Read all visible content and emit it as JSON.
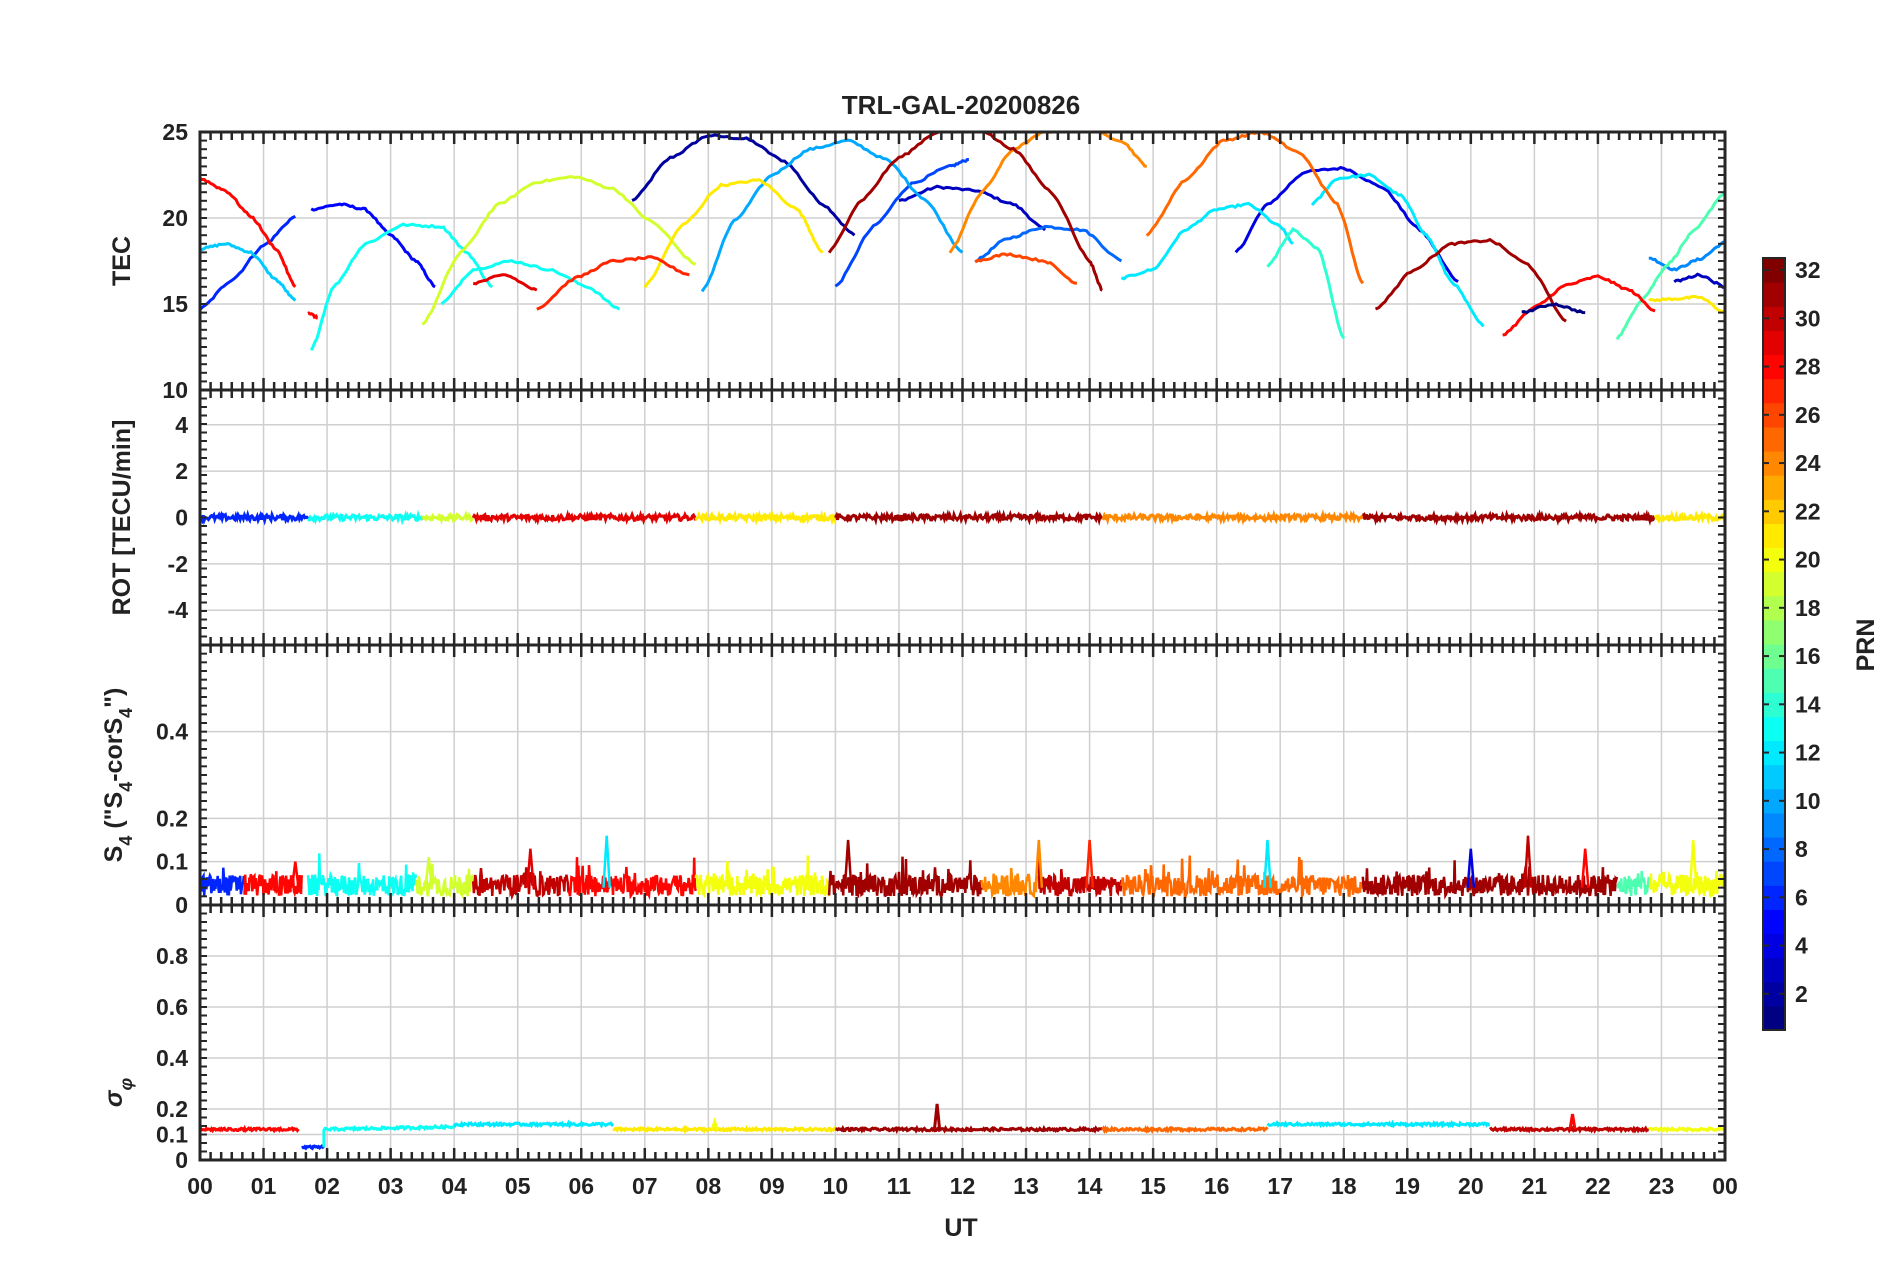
{
  "chart_data": [
    {
      "type": "line",
      "panel": "tec",
      "title": "TRL-GAL-20200826",
      "ylabel": "TEC",
      "xlabel": "",
      "xlim": [
        0,
        24
      ],
      "ylim": [
        10,
        25
      ],
      "yticks": [
        10,
        15,
        20,
        25
      ],
      "grid": true,
      "series": [
        {
          "prn": 2,
          "x": [
            6.8,
            7.4,
            8.0,
            8.6,
            9.2,
            9.8,
            10.3
          ],
          "y": [
            21.0,
            23.5,
            24.8,
            24.6,
            23.3,
            20.8,
            19.0
          ]
        },
        {
          "prn": 3,
          "x": [
            11.0,
            11.6,
            12.2,
            12.8,
            13.3
          ],
          "y": [
            21.0,
            21.8,
            21.6,
            20.8,
            19.3
          ]
        },
        {
          "prn": 4,
          "x": [
            16.3,
            16.8,
            17.4,
            18.0,
            18.6,
            19.2,
            19.8
          ],
          "y": [
            18.0,
            20.8,
            22.7,
            22.9,
            21.8,
            19.3,
            16.3
          ]
        },
        {
          "prn": 5,
          "x": [
            1.75,
            2.2,
            2.6,
            3.0,
            3.4,
            3.7
          ],
          "y": [
            20.5,
            20.8,
            20.5,
            19.0,
            17.5,
            16.0
          ]
        },
        {
          "prn": 6,
          "x": [
            0.0,
            0.5,
            1.0,
            1.5
          ],
          "y": [
            14.7,
            16.4,
            18.4,
            20.1
          ]
        },
        {
          "prn": 7,
          "x": [
            10.0,
            10.6,
            11.2,
            11.8,
            12.1
          ],
          "y": [
            16.0,
            19.5,
            22.0,
            23.0,
            23.4
          ]
        },
        {
          "prn": 8,
          "x": [
            12.2,
            12.7,
            13.3,
            13.9,
            14.5
          ],
          "y": [
            17.5,
            18.8,
            19.5,
            19.3,
            17.5
          ]
        },
        {
          "prn": 9,
          "x": [
            22.8,
            23.2,
            23.6,
            24.0
          ],
          "y": [
            17.7,
            17.0,
            17.6,
            18.6
          ]
        },
        {
          "prn": 10,
          "x": [
            7.9,
            8.4,
            9.0,
            9.6,
            10.2,
            10.8,
            11.4,
            12.0
          ],
          "y": [
            15.7,
            19.8,
            22.5,
            24.0,
            24.5,
            23.4,
            21.1,
            18.0
          ]
        },
        {
          "prn": 11,
          "x": [
            0.0,
            0.4,
            0.8,
            1.2,
            1.5
          ],
          "y": [
            18.2,
            18.5,
            18.0,
            16.4,
            15.2
          ]
        },
        {
          "prn": 12,
          "x": [
            14.5,
            15.0,
            15.5,
            16.0,
            16.5,
            17.0,
            17.2
          ],
          "y": [
            16.5,
            17.0,
            19.3,
            20.5,
            20.8,
            19.5,
            18.5
          ]
        },
        {
          "prn": 12,
          "x": [
            17.5,
            17.9,
            18.4,
            18.9,
            19.3,
            19.7,
            20.2
          ],
          "y": [
            20.8,
            22.3,
            22.5,
            21.3,
            19.0,
            16.3,
            13.7
          ]
        },
        {
          "prn": 13,
          "x": [
            1.75,
            2.1,
            2.6,
            3.2,
            3.8,
            4.2,
            4.6
          ],
          "y": [
            12.3,
            16.0,
            18.5,
            19.6,
            19.5,
            18.0,
            16.0
          ]
        },
        {
          "prn": 13,
          "x": [
            3.8,
            4.3,
            4.9,
            5.5,
            6.1,
            6.6
          ],
          "y": [
            15.0,
            17.0,
            17.5,
            17.0,
            16.0,
            14.7
          ]
        },
        {
          "prn": 14,
          "x": [
            16.8,
            17.2,
            17.6,
            18.0
          ],
          "y": [
            17.2,
            19.3,
            18.2,
            13.0
          ]
        },
        {
          "prn": 15,
          "x": [
            22.3,
            22.7,
            23.1,
            23.5,
            24.0
          ],
          "y": [
            13.0,
            15.3,
            17.3,
            19.2,
            21.5
          ]
        },
        {
          "prn": 19,
          "x": [
            3.5,
            4.1,
            4.7,
            5.3,
            5.9,
            6.5,
            7.1,
            7.8
          ],
          "y": [
            13.8,
            18.0,
            20.8,
            22.1,
            22.4,
            21.7,
            19.8,
            17.3
          ]
        },
        {
          "prn": 21,
          "x": [
            7.0,
            7.6,
            8.2,
            8.8,
            9.4,
            9.8
          ],
          "y": [
            16.0,
            19.6,
            21.9,
            22.2,
            20.5,
            18.0
          ]
        },
        {
          "prn": 21,
          "x": [
            22.8,
            23.2,
            23.6,
            24.0
          ],
          "y": [
            15.2,
            15.3,
            15.4,
            14.5
          ]
        },
        {
          "prn": 24,
          "x": [
            11.8,
            12.3,
            12.8,
            13.3,
            13.9,
            14.5,
            14.9
          ],
          "y": [
            18.0,
            21.5,
            24.0,
            25.0,
            25.3,
            24.5,
            23.0
          ]
        },
        {
          "prn": 25,
          "x": [
            14.9,
            15.5,
            16.1,
            16.7,
            17.3,
            17.9,
            18.3
          ],
          "y": [
            19.0,
            22.2,
            24.5,
            25.0,
            23.8,
            20.8,
            16.2
          ]
        },
        {
          "prn": 26,
          "x": [
            12.2,
            12.7,
            13.3,
            13.8
          ],
          "y": [
            17.5,
            17.9,
            17.5,
            16.2
          ]
        },
        {
          "prn": 27,
          "x": [
            5.3,
            5.9,
            6.5,
            7.1,
            7.7
          ],
          "y": [
            14.7,
            16.5,
            17.5,
            17.7,
            16.7
          ]
        },
        {
          "prn": 28,
          "x": [
            0.0,
            0.4,
            0.8,
            1.2,
            1.5
          ],
          "y": [
            22.3,
            21.6,
            20.1,
            18.2,
            16.0
          ]
        },
        {
          "prn": 28,
          "x": [
            20.5,
            21.0,
            21.5,
            22.0,
            22.5,
            22.9
          ],
          "y": [
            13.2,
            14.8,
            16.1,
            16.6,
            15.8,
            14.6
          ]
        },
        {
          "prn": 28,
          "x": [
            1.7,
            1.85
          ],
          "y": [
            14.5,
            14.2
          ]
        },
        {
          "prn": 29,
          "x": [
            4.3,
            4.8,
            5.3
          ],
          "y": [
            16.2,
            16.7,
            15.8
          ]
        },
        {
          "prn": 31,
          "x": [
            9.9,
            10.4,
            11.0,
            11.6,
            12.2,
            12.8,
            13.4,
            14.0,
            14.2
          ],
          "y": [
            18.0,
            21.0,
            23.5,
            25.0,
            25.3,
            24.0,
            21.5,
            17.5,
            15.8
          ]
        },
        {
          "prn": 31,
          "x": [
            18.5,
            19.1,
            19.7,
            20.3,
            20.9,
            21.5
          ],
          "y": [
            14.7,
            17.0,
            18.5,
            18.7,
            17.3,
            14.0
          ]
        },
        {
          "prn": 1,
          "x": [
            20.8,
            21.3,
            21.8
          ],
          "y": [
            14.5,
            15.0,
            14.5
          ]
        },
        {
          "prn": 3,
          "x": [
            23.2,
            23.6,
            24.0
          ],
          "y": [
            16.3,
            16.7,
            16.0
          ]
        }
      ]
    },
    {
      "type": "line",
      "panel": "rot",
      "ylabel": "ROT [TECU/min]",
      "xlim": [
        0,
        24
      ],
      "ylim": [
        -5.5,
        5.5
      ],
      "yticks": [
        -4,
        -2,
        0,
        2,
        4
      ],
      "grid": true,
      "note": "All PRNs near 0 TECU/min, |ROT| < 0.3",
      "segments": [
        {
          "prn": 6,
          "x0": 0,
          "x1": 1.7
        },
        {
          "prn": 13,
          "x0": 1.7,
          "x1": 3.5
        },
        {
          "prn": 19,
          "x0": 3.5,
          "x1": 4.3
        },
        {
          "prn": 29,
          "x0": 4.3,
          "x1": 7.8
        },
        {
          "prn": 21,
          "x0": 7.8,
          "x1": 10.0
        },
        {
          "prn": 31,
          "x0": 10.0,
          "x1": 14.2
        },
        {
          "prn": 24,
          "x0": 14.2,
          "x1": 18.3
        },
        {
          "prn": 31,
          "x0": 18.3,
          "x1": 22.9
        },
        {
          "prn": 21,
          "x0": 22.9,
          "x1": 24.0
        }
      ]
    },
    {
      "type": "line",
      "panel": "s4",
      "ylabel": "S4 (\"S4-corS4\")",
      "ylabel_parts": [
        "S",
        "4",
        " (\"S",
        "4",
        "-corS",
        "4",
        "\")"
      ],
      "xlim": [
        0,
        24
      ],
      "ylim": [
        0,
        0.6
      ],
      "yticks": [
        0,
        0.1,
        0.2,
        0.4
      ],
      "ytick_labels": [
        "0",
        "0.1",
        "0.2",
        "0.4"
      ],
      "grid": true,
      "baseline": 0.04,
      "spread": 0.05,
      "peaks": [
        {
          "x": 1.5,
          "y": 0.1,
          "prn": 28
        },
        {
          "x": 3.6,
          "y": 0.11,
          "prn": 19
        },
        {
          "x": 5.2,
          "y": 0.13,
          "prn": 29
        },
        {
          "x": 6.4,
          "y": 0.16,
          "prn": 12
        },
        {
          "x": 10.2,
          "y": 0.15,
          "prn": 31
        },
        {
          "x": 13.2,
          "y": 0.15,
          "prn": 24
        },
        {
          "x": 14.0,
          "y": 0.15,
          "prn": 27
        },
        {
          "x": 16.8,
          "y": 0.15,
          "prn": 12
        },
        {
          "x": 20.0,
          "y": 0.13,
          "prn": 4
        },
        {
          "x": 20.9,
          "y": 0.16,
          "prn": 30
        },
        {
          "x": 21.8,
          "y": 0.13,
          "prn": 28
        },
        {
          "x": 23.5,
          "y": 0.15,
          "prn": 20
        }
      ],
      "segments": [
        {
          "prn": 6,
          "x0": 0,
          "x1": 0.7
        },
        {
          "prn": 28,
          "x0": 0.7,
          "x1": 1.6
        },
        {
          "prn": 13,
          "x0": 1.7,
          "x1": 3.4
        },
        {
          "prn": 19,
          "x0": 3.4,
          "x1": 4.3
        },
        {
          "prn": 30,
          "x0": 4.3,
          "x1": 5.8
        },
        {
          "prn": 28,
          "x0": 5.8,
          "x1": 7.8
        },
        {
          "prn": 20,
          "x0": 7.8,
          "x1": 9.9
        },
        {
          "prn": 31,
          "x0": 9.9,
          "x1": 12.3
        },
        {
          "prn": 24,
          "x0": 12.3,
          "x1": 13.2
        },
        {
          "prn": 30,
          "x0": 13.2,
          "x1": 14.5
        },
        {
          "prn": 25,
          "x0": 14.5,
          "x1": 18.3
        },
        {
          "prn": 31,
          "x0": 18.3,
          "x1": 22.3
        },
        {
          "prn": 15,
          "x0": 22.3,
          "x1": 22.8
        },
        {
          "prn": 20,
          "x0": 22.8,
          "x1": 24.0
        }
      ]
    },
    {
      "type": "line",
      "panel": "sigma-phi",
      "ylabel": "σφ",
      "ylabel_parts": [
        "σ",
        "φ"
      ],
      "xlabel": "UT",
      "xlim": [
        0,
        24
      ],
      "ylim": [
        0,
        1
      ],
      "yticks": [
        0,
        0.1,
        0.2,
        0.4,
        0.6,
        0.8
      ],
      "ytick_labels": [
        "0",
        "0.1",
        "0.2",
        "0.4",
        "0.6",
        "0.8"
      ],
      "grid": true,
      "x_tick_labels": [
        "00",
        "01",
        "02",
        "03",
        "04",
        "05",
        "06",
        "07",
        "08",
        "09",
        "10",
        "11",
        "12",
        "13",
        "14",
        "15",
        "16",
        "17",
        "18",
        "19",
        "20",
        "21",
        "22",
        "23",
        "00"
      ],
      "series": [
        {
          "prn": 28,
          "x": [
            0,
            1.55
          ],
          "y": [
            0.12,
            0.12
          ]
        },
        {
          "prn": 6,
          "x": [
            1.6,
            1.95
          ],
          "y": [
            0.05,
            0.05
          ]
        },
        {
          "prn": 13,
          "x": [
            1.95,
            4.0
          ],
          "y": [
            0.12,
            0.13
          ]
        },
        {
          "prn": 12,
          "x": [
            4.0,
            6.5
          ],
          "y": [
            0.14,
            0.14
          ]
        },
        {
          "prn": 21,
          "x": [
            6.5,
            10.0
          ],
          "y": [
            0.12,
            0.12
          ]
        },
        {
          "prn": 31,
          "x": [
            10.0,
            14.2
          ],
          "y": [
            0.12,
            0.12
          ]
        },
        {
          "prn": 25,
          "x": [
            14.2,
            16.8
          ],
          "y": [
            0.12,
            0.12
          ]
        },
        {
          "prn": 12,
          "x": [
            16.8,
            20.3
          ],
          "y": [
            0.14,
            0.14
          ]
        },
        {
          "prn": 30,
          "x": [
            20.3,
            22.8
          ],
          "y": [
            0.12,
            0.12
          ]
        },
        {
          "prn": 20,
          "x": [
            22.8,
            24.0
          ],
          "y": [
            0.12,
            0.12
          ]
        }
      ],
      "spikes": [
        {
          "x": 11.6,
          "y": 0.22,
          "prn": 31
        },
        {
          "x": 21.6,
          "y": 0.18,
          "prn": 28
        },
        {
          "x": 8.1,
          "y": 0.15,
          "prn": 20
        }
      ]
    }
  ],
  "colorbar": {
    "label": "PRN",
    "range": [
      1,
      32
    ],
    "ticks": [
      2,
      4,
      6,
      8,
      10,
      12,
      14,
      16,
      18,
      20,
      22,
      24,
      26,
      28,
      30,
      32
    ],
    "colormap": "jet"
  }
}
